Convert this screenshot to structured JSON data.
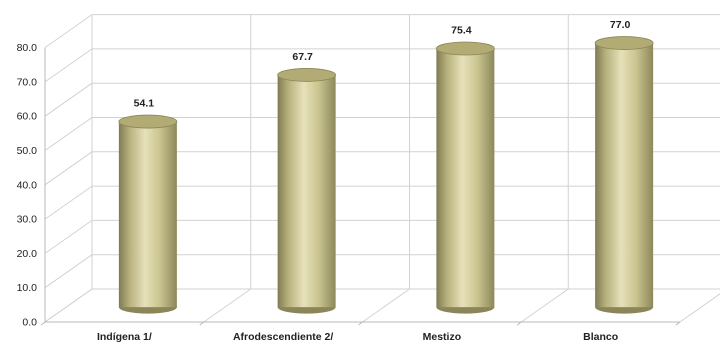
{
  "chart_data": {
    "type": "bar",
    "style": "3d-cylinder",
    "categories": [
      "Indígena 1/",
      "Afrodescendiente 2/",
      "Mestizo",
      "Blanco"
    ],
    "values": [
      54.1,
      67.7,
      75.4,
      77.0
    ],
    "data_labels": [
      "54.1",
      "67.7",
      "75.4",
      "77.0"
    ],
    "y_ticks": [
      "0.0",
      "10.0",
      "20.0",
      "30.0",
      "40.0",
      "50.0",
      "60.0",
      "70.0",
      "80.0"
    ],
    "ylim": [
      0,
      80
    ],
    "grid": true,
    "legend": "none",
    "colors": {
      "bar_body": "#c9c38e",
      "bar_edge": "#8a865a",
      "bar_top": "#b2ab73",
      "gridline": "#d2d2d2",
      "axis": "#b8b8b8"
    }
  }
}
